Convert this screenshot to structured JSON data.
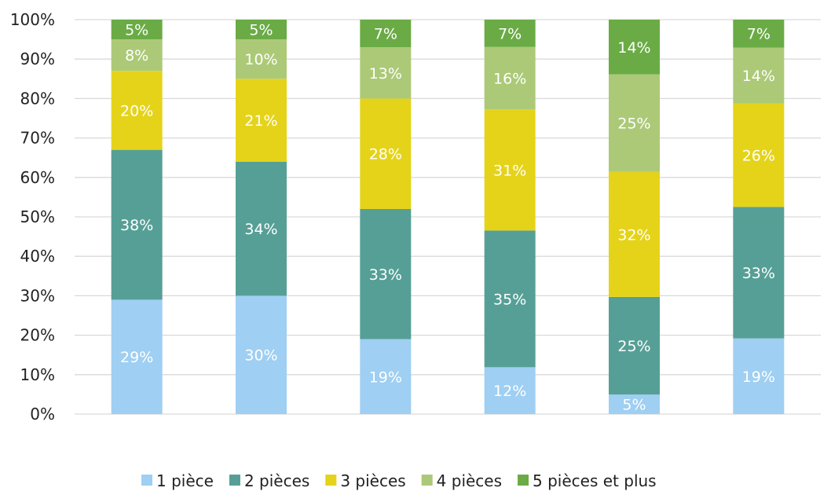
{
  "chart_data": {
    "type": "bar",
    "stacked": true,
    "percent": true,
    "categories": [
      "",
      "",
      "",
      "",
      "",
      ""
    ],
    "ylim": [
      0,
      100
    ],
    "y_ticks": [
      "0%",
      "10%",
      "20%",
      "30%",
      "40%",
      "50%",
      "60%",
      "70%",
      "80%",
      "90%",
      "100%"
    ],
    "grid": true,
    "legend_position": "bottom",
    "series": [
      {
        "name": "1 pièce",
        "color": "#9fcff2",
        "values": [
          29,
          30,
          19,
          12,
          5,
          19
        ]
      },
      {
        "name": "2 pièces",
        "color": "#569f96",
        "values": [
          38,
          34,
          33,
          35,
          25,
          33
        ]
      },
      {
        "name": "3 pièces",
        "color": "#e5d31a",
        "values": [
          20,
          21,
          28,
          31,
          32,
          26
        ]
      },
      {
        "name": "4 pièces",
        "color": "#acc978",
        "values": [
          8,
          10,
          13,
          16,
          25,
          14
        ]
      },
      {
        "name": "5 pièces et plus",
        "color": "#6aab45",
        "values": [
          5,
          5,
          7,
          7,
          14,
          7
        ]
      }
    ]
  }
}
